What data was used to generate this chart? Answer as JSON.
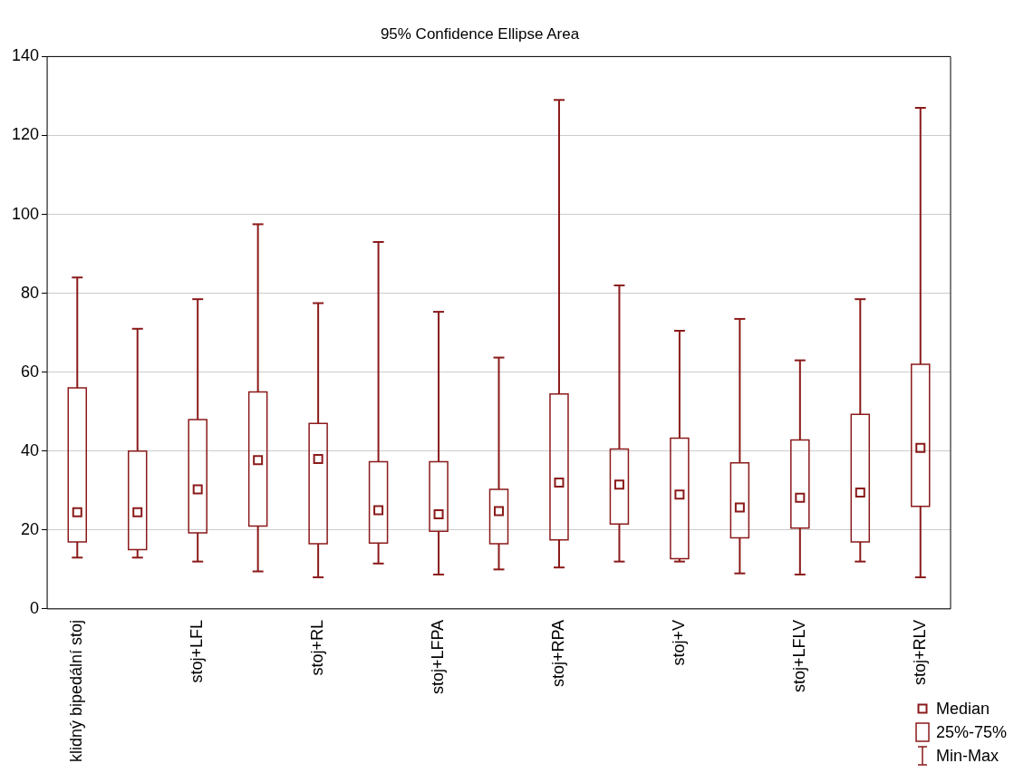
{
  "chart_data": {
    "type": "box",
    "title": "95% Confidence Ellipse Area",
    "categories": [
      "klidný bipedální stoj",
      null,
      "stoj+LFL",
      null,
      "stoj+RL",
      null,
      "stoj+LFPA",
      null,
      "stoj+RPA",
      null,
      "stoj+V",
      null,
      "stoj+LFLV",
      null,
      "stoj+RLV"
    ],
    "series": [
      {
        "color": "#8b1a1a",
        "boxes": [
          {
            "low": 13,
            "q1": 17,
            "median": 24.5,
            "q3": 56,
            "high": 84
          },
          {
            "low": 13,
            "q1": 15,
            "median": 24.5,
            "q3": 40,
            "high": 71
          },
          {
            "low": 12,
            "q1": 19.3,
            "median": 30.3,
            "q3": 48,
            "high": 78.5
          },
          {
            "low": 9.5,
            "q1": 21,
            "median": 37.7,
            "q3": 55,
            "high": 97.5
          },
          {
            "low": 8,
            "q1": 16.5,
            "median": 38,
            "q3": 47,
            "high": 77.5
          },
          {
            "low": 11.5,
            "q1": 16.7,
            "median": 25,
            "q3": 37.3,
            "high": 93
          },
          {
            "low": 8.7,
            "q1": 19.7,
            "median": 24,
            "q3": 37.3,
            "high": 75.3
          },
          {
            "low": 10,
            "q1": 16.5,
            "median": 24.8,
            "q3": 30.3,
            "high": 63.7
          },
          {
            "low": 10.5,
            "q1": 17.5,
            "median": 32,
            "q3": 54.5,
            "high": 129
          },
          {
            "low": 12,
            "q1": 21.5,
            "median": 31.5,
            "q3": 40.5,
            "high": 82
          },
          {
            "low": 12,
            "q1": 12.7,
            "median": 29,
            "q3": 43.3,
            "high": 70.5
          },
          {
            "low": 9,
            "q1": 18,
            "median": 25.7,
            "q3": 37,
            "high": 73.5
          },
          {
            "low": 8.7,
            "q1": 20.5,
            "median": 28.2,
            "q3": 42.8,
            "high": 63
          },
          {
            "low": 12,
            "q1": 17,
            "median": 29.5,
            "q3": 49.3,
            "high": 78.5
          },
          {
            "low": 8,
            "q1": 26,
            "median": 40.8,
            "q3": 62,
            "high": 127
          }
        ]
      }
    ],
    "ylim": [
      0,
      140
    ],
    "yticks": [
      0,
      20,
      40,
      60,
      80,
      100,
      120,
      140
    ],
    "grid": "y",
    "annotations": [
      "Median",
      "25%-75%",
      "Min-Max"
    ]
  }
}
